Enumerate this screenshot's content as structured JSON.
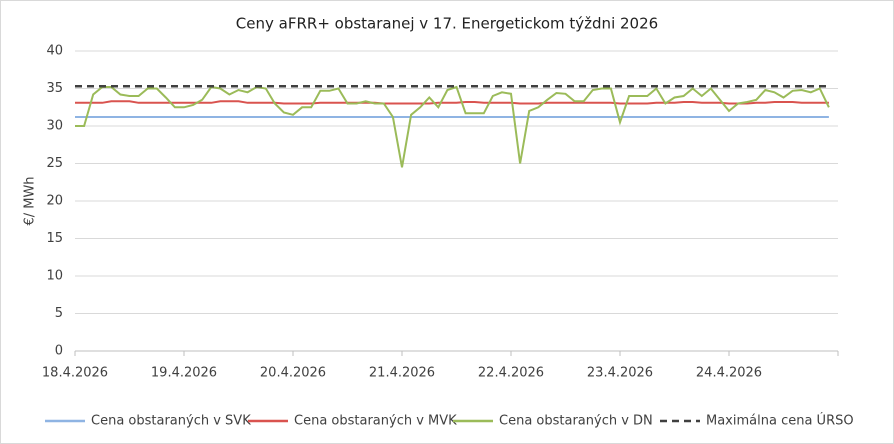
{
  "chart_data": {
    "type": "line",
    "title": "Ceny aFRR+ obstaranej v 17. Energetickom týždni 2026",
    "y_label": "€/ MWh",
    "categories": [
      "18.4.2026",
      null,
      null,
      null,
      null,
      null,
      null,
      null,
      null,
      null,
      null,
      null,
      "19.4.2026",
      null,
      null,
      null,
      null,
      null,
      null,
      null,
      null,
      null,
      null,
      null,
      "20.4.2026",
      null,
      null,
      null,
      null,
      null,
      null,
      null,
      null,
      null,
      null,
      null,
      "21.4.2026",
      null,
      null,
      null,
      null,
      null,
      null,
      null,
      null,
      null,
      null,
      null,
      "22.4.2026",
      null,
      null,
      null,
      null,
      null,
      null,
      null,
      null,
      null,
      null,
      null,
      "23.4.2026",
      null,
      null,
      null,
      null,
      null,
      null,
      null,
      null,
      null,
      null,
      null,
      "24.4.2026",
      null,
      null,
      null,
      null,
      null,
      null,
      null,
      null,
      null,
      null,
      null
    ],
    "ylim": [
      0,
      40
    ],
    "yticks": [
      0,
      5,
      10,
      15,
      20,
      25,
      30,
      35,
      40
    ],
    "grid": true,
    "series": [
      {
        "name": "Cena obstaraných v SVK",
        "color": "#8fb4e3",
        "style": "solid",
        "values": [
          31.2,
          31.2,
          31.2,
          31.2,
          31.2,
          31.2,
          31.2,
          31.2,
          31.2,
          31.2,
          31.2,
          31.2,
          31.2,
          31.2,
          31.2,
          31.2,
          31.2,
          31.2,
          31.2,
          31.2,
          31.2,
          31.2,
          31.2,
          31.2,
          31.2,
          31.2,
          31.2,
          31.2,
          31.2,
          31.2,
          31.2,
          31.2,
          31.2,
          31.2,
          31.2,
          31.2,
          31.2,
          31.2,
          31.2,
          31.2,
          31.2,
          31.2,
          31.2,
          31.2,
          31.2,
          31.2,
          31.2,
          31.2,
          31.2,
          31.2,
          31.2,
          31.2,
          31.2,
          31.2,
          31.2,
          31.2,
          31.2,
          31.2,
          31.2,
          31.2,
          31.2,
          31.2,
          31.2,
          31.2,
          31.2,
          31.2,
          31.2,
          31.2,
          31.2,
          31.2,
          31.2,
          31.2,
          31.2,
          31.2,
          31.2,
          31.2,
          31.2,
          31.2,
          31.2,
          31.2,
          31.2,
          31.2,
          31.2,
          31.2
        ]
      },
      {
        "name": "Cena obstaraných v MVK",
        "color": "#d9534f",
        "style": "solid",
        "values": [
          33.1,
          33.1,
          33.1,
          33.1,
          33.3,
          33.3,
          33.3,
          33.1,
          33.1,
          33.1,
          33.1,
          33.1,
          33.1,
          33.1,
          33.1,
          33.1,
          33.3,
          33.3,
          33.3,
          33.1,
          33.1,
          33.1,
          33.1,
          33.0,
          33.0,
          33.0,
          33.0,
          33.1,
          33.1,
          33.1,
          33.1,
          33.1,
          33.1,
          33.1,
          33.0,
          33.0,
          33.0,
          33.0,
          33.0,
          33.0,
          33.1,
          33.1,
          33.1,
          33.2,
          33.2,
          33.1,
          33.1,
          33.1,
          33.1,
          33.0,
          33.0,
          33.0,
          33.1,
          33.1,
          33.1,
          33.1,
          33.1,
          33.1,
          33.1,
          33.1,
          33.0,
          33.0,
          33.0,
          33.0,
          33.1,
          33.1,
          33.1,
          33.2,
          33.2,
          33.1,
          33.1,
          33.1,
          33.0,
          33.0,
          33.0,
          33.1,
          33.1,
          33.2,
          33.2,
          33.2,
          33.1,
          33.1,
          33.1,
          33.1
        ]
      },
      {
        "name": "Cena obstaraných v DN",
        "color": "#9bbb59",
        "style": "solid",
        "values": [
          30,
          30,
          34.2,
          35.2,
          35.2,
          34.2,
          34,
          34,
          35,
          35,
          33.8,
          32.5,
          32.5,
          32.8,
          33.5,
          35.2,
          35,
          34.2,
          34.8,
          34.5,
          35.2,
          35,
          33,
          31.8,
          31.5,
          32.5,
          32.5,
          34.7,
          34.7,
          35,
          33,
          33,
          33.3,
          33,
          33,
          31.2,
          24.5,
          31.5,
          32.5,
          33.8,
          32.5,
          34.8,
          35.2,
          31.7,
          31.7,
          31.7,
          34,
          34.5,
          34.3,
          25,
          32,
          32.5,
          33.5,
          34.4,
          34.3,
          33.3,
          33.3,
          34.8,
          35,
          35,
          30.5,
          34,
          34,
          34,
          35,
          33,
          33.8,
          34,
          35,
          34,
          35,
          33.5,
          32,
          33,
          33.2,
          33.5,
          34.8,
          34.5,
          33.8,
          34.7,
          34.8,
          34.5,
          35,
          32.5
        ]
      },
      {
        "name": "Maximálna cena ÚRSO",
        "color": "#404040",
        "style": "dashed",
        "values": [
          35.3,
          35.3,
          35.3,
          35.3,
          35.3,
          35.3,
          35.3,
          35.3,
          35.3,
          35.3,
          35.3,
          35.3,
          35.3,
          35.3,
          35.3,
          35.3,
          35.3,
          35.3,
          35.3,
          35.3,
          35.3,
          35.3,
          35.3,
          35.3,
          35.3,
          35.3,
          35.3,
          35.3,
          35.3,
          35.3,
          35.3,
          35.3,
          35.3,
          35.3,
          35.3,
          35.3,
          35.3,
          35.3,
          35.3,
          35.3,
          35.3,
          35.3,
          35.3,
          35.3,
          35.3,
          35.3,
          35.3,
          35.3,
          35.3,
          35.3,
          35.3,
          35.3,
          35.3,
          35.3,
          35.3,
          35.3,
          35.3,
          35.3,
          35.3,
          35.3,
          35.3,
          35.3,
          35.3,
          35.3,
          35.3,
          35.3,
          35.3,
          35.3,
          35.3,
          35.3,
          35.3,
          35.3,
          35.3,
          35.3,
          35.3,
          35.3,
          35.3,
          35.3,
          35.3,
          35.3,
          35.3,
          35.3,
          35.3,
          35.3
        ]
      }
    ]
  }
}
